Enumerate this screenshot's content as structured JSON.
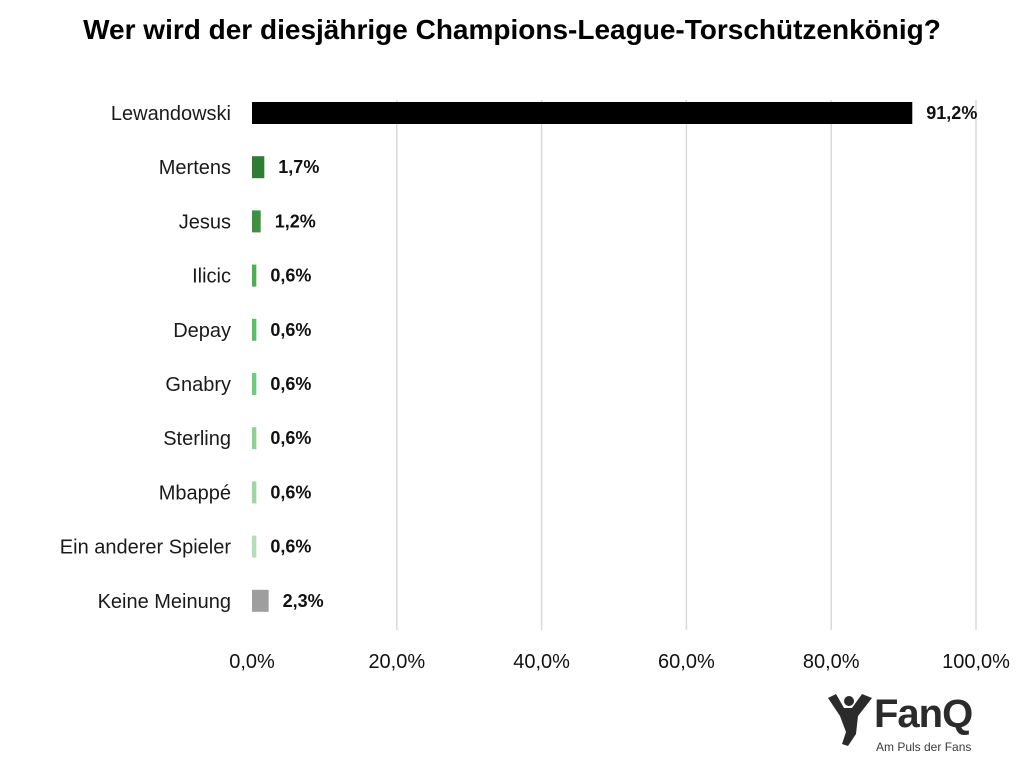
{
  "chart_data": {
    "type": "bar",
    "orientation": "horizontal",
    "title": "Wer wird der diesjährige Champions-League-Torschützenkönig?",
    "xlabel": "",
    "ylabel": "",
    "categories": [
      "Lewandowski",
      "Mertens",
      "Jesus",
      "Ilicic",
      "Depay",
      "Gnabry",
      "Sterling",
      "Mbappé",
      "Ein anderer Spieler",
      "Keine Meinung"
    ],
    "values": [
      91.2,
      1.7,
      1.2,
      0.6,
      0.6,
      0.6,
      0.6,
      0.6,
      0.6,
      2.3
    ],
    "value_labels": [
      "91,2%",
      "1,7%",
      "1,2%",
      "0,6%",
      "0,6%",
      "0,6%",
      "0,6%",
      "0,6%",
      "0,6%",
      "2,3%"
    ],
    "bar_colors": [
      "#000000",
      "#2e7d32",
      "#3d9140",
      "#4caf50",
      "#5cbf63",
      "#6fcc78",
      "#8ed191",
      "#9fd6a2",
      "#b4dfb6",
      "#9e9e9e"
    ],
    "xlim": [
      0,
      100
    ],
    "x_ticks": [
      0,
      20,
      40,
      60,
      80,
      100
    ],
    "x_tick_labels": [
      "0,0%",
      "20,0%",
      "40,0%",
      "60,0%",
      "80,0%",
      "100,0%"
    ],
    "grid": true,
    "legend": "none"
  },
  "logo": {
    "name": "FanQ",
    "tagline": "Am Puls der Fans",
    "icon": "cheering-fan-icon",
    "color": "#2b2b2b"
  }
}
